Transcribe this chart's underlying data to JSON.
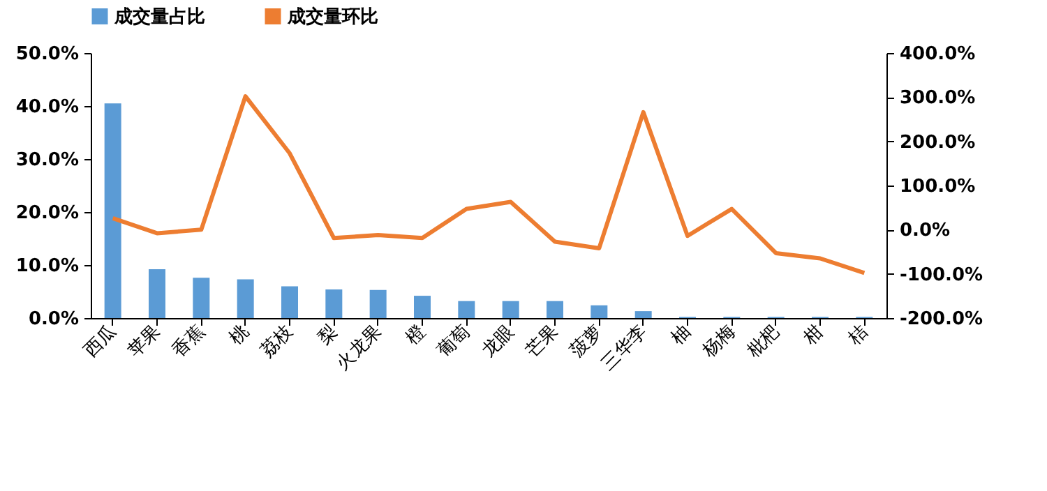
{
  "chart_data": {
    "type": "bar",
    "categories": [
      "西瓜",
      "苹果",
      "香蕉",
      "桃",
      "荔枝",
      "梨",
      "火龙果",
      "橙",
      "葡萄",
      "龙眼",
      "芒果",
      "菠萝",
      "三华李",
      "柚",
      "杨梅",
      "枇杷",
      "柑",
      "桔"
    ],
    "series": [
      {
        "name": "成交量占比",
        "color": "#5b9bd5",
        "values": [
          40.5,
          9.2,
          7.6,
          7.3,
          6.0,
          5.4,
          5.3,
          4.2,
          3.2,
          3.2,
          3.2,
          2.4,
          1.3,
          0.2,
          0.2,
          0.2,
          0.2,
          0.2
        ]
      },
      {
        "name": "成交量环比",
        "type": "line",
        "axis": "y2",
        "color": "#ed7d31",
        "values": [
          26,
          -8,
          0,
          302,
          173,
          -19,
          -12,
          -19,
          47,
          63,
          -27,
          -42,
          266,
          -14,
          47,
          -53,
          -65,
          -98
        ]
      }
    ],
    "ylim": [
      0,
      50
    ],
    "yticks": [
      {
        "value": 0,
        "label": "0.0%"
      },
      {
        "value": 10,
        "label": "10.0%"
      },
      {
        "value": 20,
        "label": "20.0%"
      },
      {
        "value": 30,
        "label": "30.0%"
      },
      {
        "value": 40,
        "label": "40.0%"
      },
      {
        "value": 50,
        "label": "50.0%"
      }
    ],
    "y2lim": [
      -200,
      400
    ],
    "y2ticks": [
      {
        "value": -200,
        "label": "-200.0%"
      },
      {
        "value": -100,
        "label": "-100.0%"
      },
      {
        "value": 0,
        "label": "0.0%"
      },
      {
        "value": 100,
        "label": "100.0%"
      },
      {
        "value": 200,
        "label": "200.0%"
      },
      {
        "value": 300,
        "label": "300.0%"
      },
      {
        "value": 400,
        "label": "400.0%"
      }
    ],
    "legend": "top",
    "grid": false
  }
}
